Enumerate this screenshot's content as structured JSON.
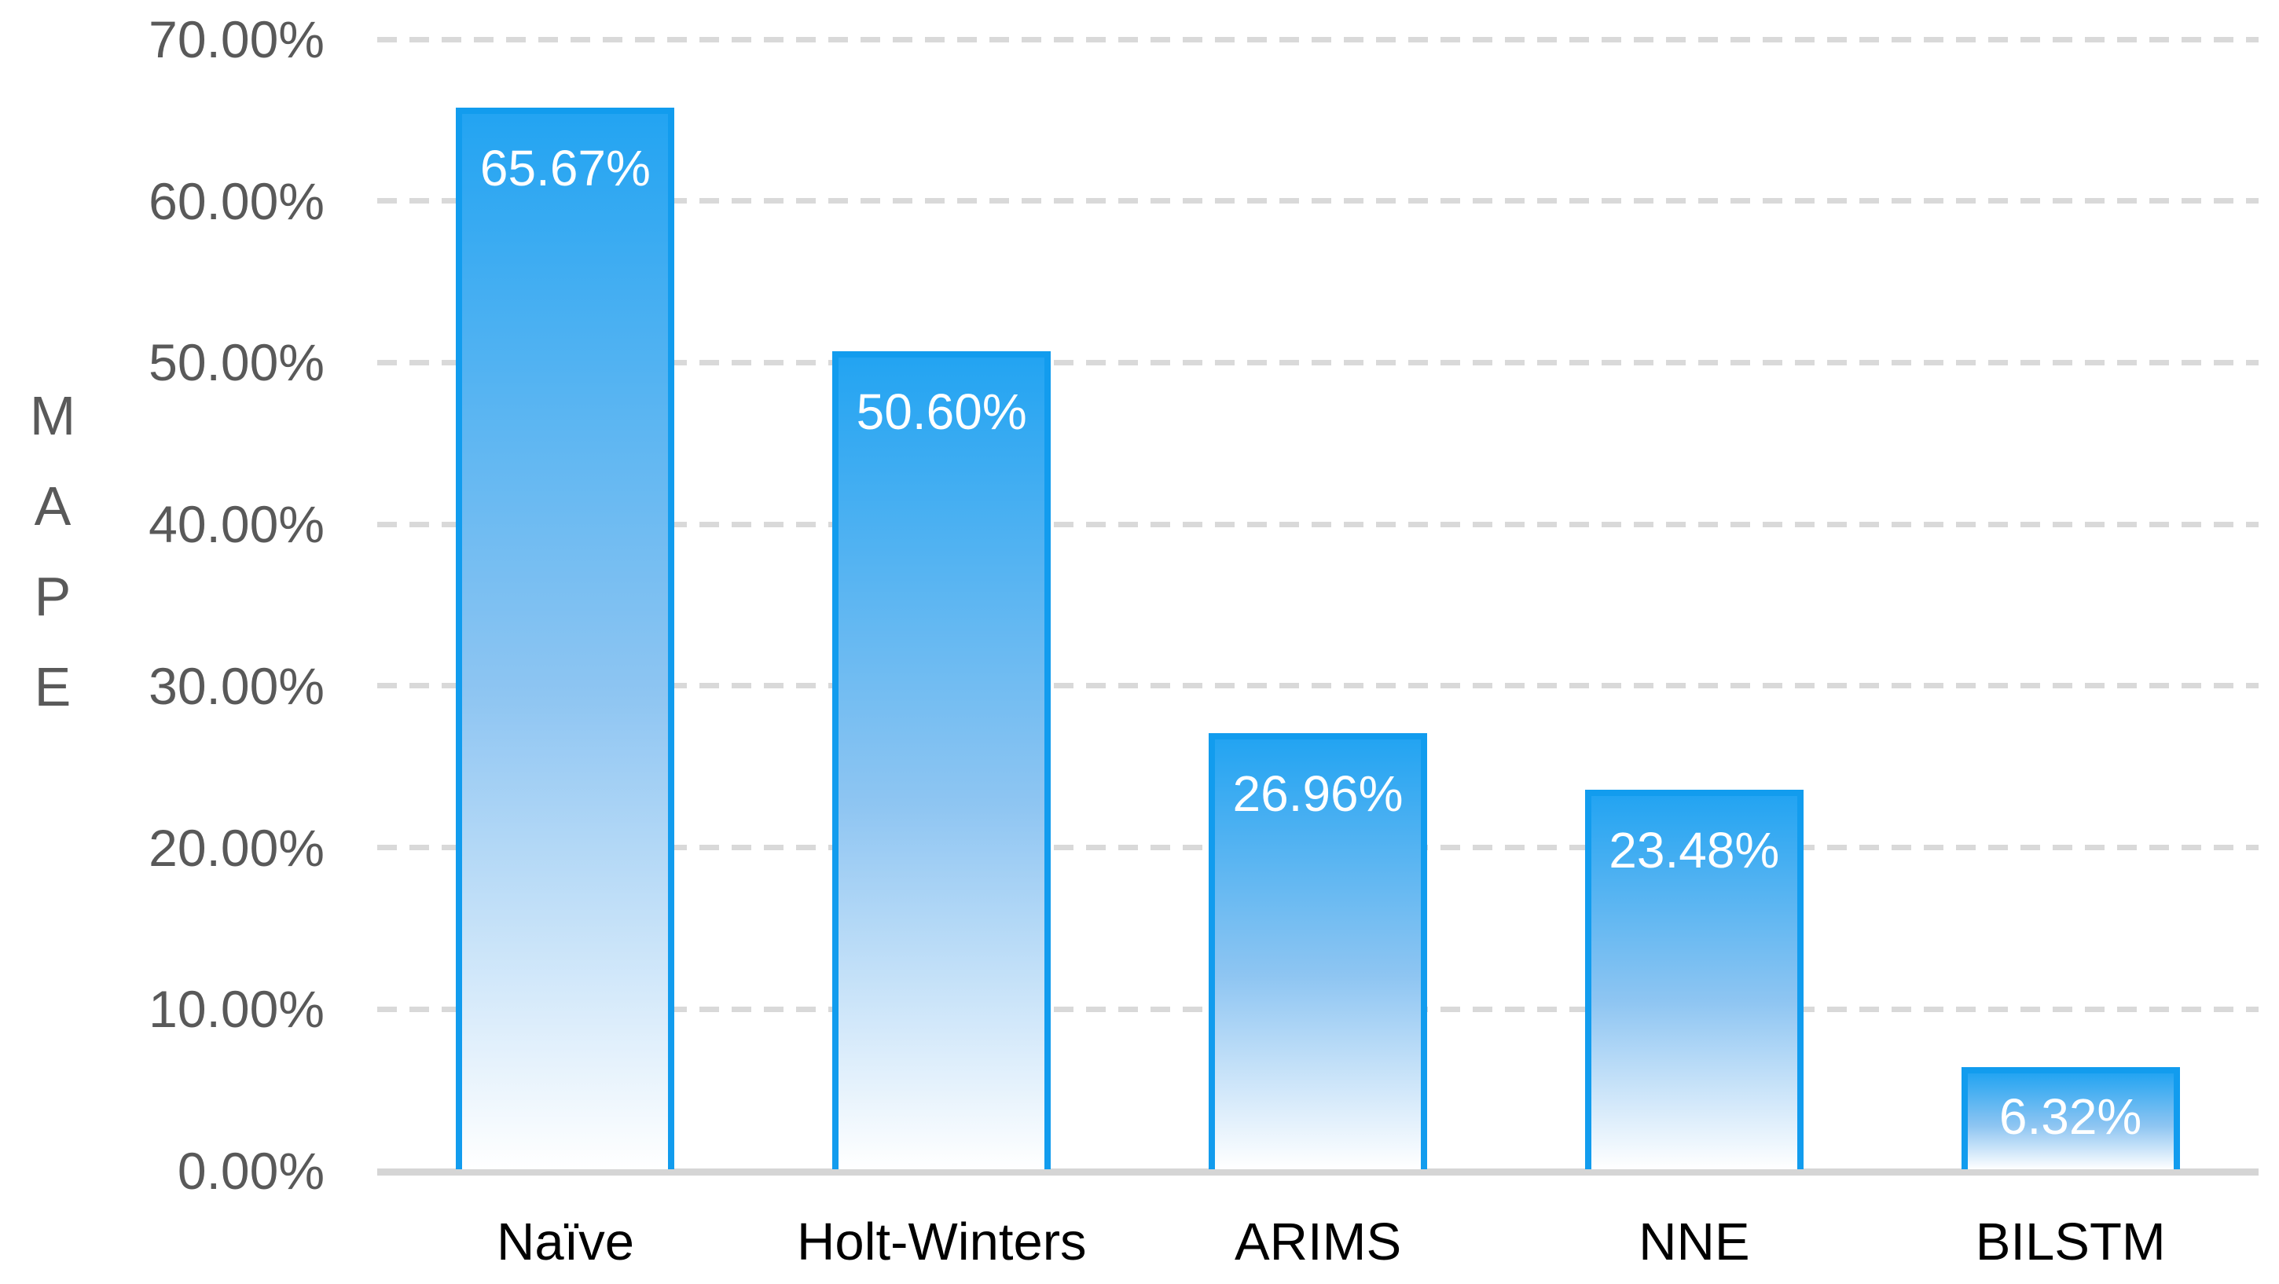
{
  "chart_data": {
    "type": "bar",
    "title": "",
    "xlabel": "",
    "ylabel": "MAPE",
    "categories": [
      "Naïve",
      "Holt-Winters",
      "ARIMS",
      "NNE",
      "BILSTM"
    ],
    "values": [
      65.67,
      50.6,
      26.96,
      23.48,
      6.32
    ],
    "labels": [
      "65.67%",
      "50.60%",
      "26.96%",
      "23.48%",
      "6.32%"
    ],
    "y_ticks": [
      "0.00%",
      "10.00%",
      "20.00%",
      "30.00%",
      "40.00%",
      "50.00%",
      "60.00%",
      "70.00%"
    ],
    "y_tick_values": [
      0,
      10,
      20,
      30,
      40,
      50,
      60,
      70
    ],
    "ylim": [
      0,
      70
    ],
    "grid": "horizontal-dashed",
    "legend": "none",
    "colors": {
      "bar_border": "#129CEE",
      "bar_gradient_top": "#23A4F2",
      "bar_gradient_mid": "#8EC5F2",
      "bar_gradient_bottom": "#FFFFFF",
      "gridline": "#D9D9D9",
      "axis_line": "#D5D5D5",
      "tick_label": "#595959",
      "category_label": "#000000",
      "data_label": "#FFFFFF"
    }
  }
}
